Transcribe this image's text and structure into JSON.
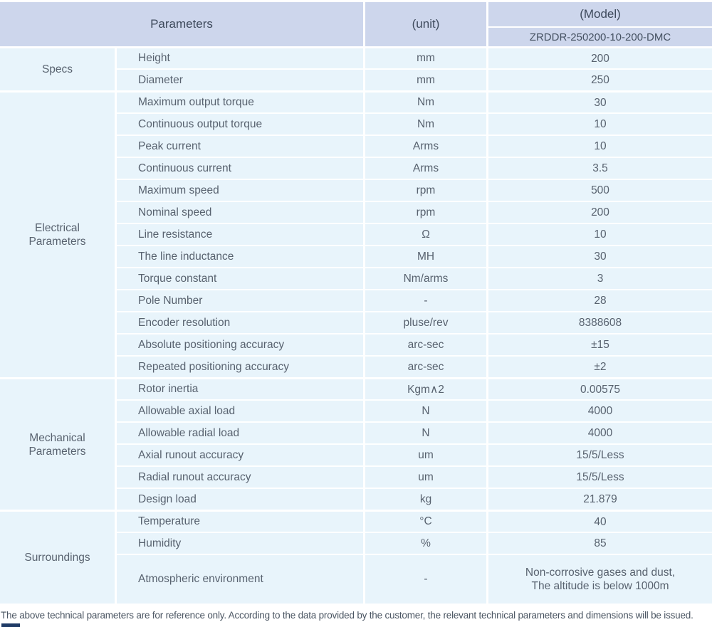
{
  "header": {
    "parameters_label": "Parameters",
    "unit_label": "(unit)",
    "model_label": "(Model)",
    "model_value": "ZRDDR-250200-10-200-DMC"
  },
  "sections": [
    {
      "id": "specs",
      "name": "Specs",
      "rows": [
        {
          "param": "Height",
          "unit": "mm",
          "value": "200"
        },
        {
          "param": "Diameter",
          "unit": "mm",
          "value": "250"
        }
      ]
    },
    {
      "id": "electrical-parameters",
      "name": "Electrical Parameters",
      "rows": [
        {
          "param": "Maximum output torque",
          "unit": "Nm",
          "value": "30"
        },
        {
          "param": "Continuous output torque",
          "unit": "Nm",
          "value": "10"
        },
        {
          "param": "Peak current",
          "unit": "Arms",
          "value": "10"
        },
        {
          "param": "Continuous current",
          "unit": "Arms",
          "value": "3.5"
        },
        {
          "param": "Maximum speed",
          "unit": "rpm",
          "value": "500"
        },
        {
          "param": "Nominal speed",
          "unit": "rpm",
          "value": "200"
        },
        {
          "param": "Line resistance",
          "unit": "Ω",
          "value": "10"
        },
        {
          "param": "The line inductance",
          "unit": "MH",
          "value": "30"
        },
        {
          "param": "Torque constant",
          "unit": "Nm/arms",
          "value": "3"
        },
        {
          "param": "Pole Number",
          "unit": "-",
          "value": "28"
        },
        {
          "param": "Encoder resolution",
          "unit": "pluse/rev",
          "value": "8388608"
        },
        {
          "param": "Absolute positioning accuracy",
          "unit": "arc-sec",
          "value": "±15"
        },
        {
          "param": "Repeated positioning accuracy",
          "unit": "arc-sec",
          "value": "±2"
        }
      ]
    },
    {
      "id": "mechanical-parameters",
      "name": "Mechanical Parameters",
      "rows": [
        {
          "param": "Rotor inertia",
          "unit": "Kgm∧2",
          "value": "0.00575"
        },
        {
          "param": "Allowable axial load",
          "unit": "N",
          "value": "4000"
        },
        {
          "param": "Allowable radial load",
          "unit": "N",
          "value": "4000"
        },
        {
          "param": "Axial runout accuracy",
          "unit": "um",
          "value": "15/5/Less"
        },
        {
          "param": "Radial runout accuracy",
          "unit": "um",
          "value": "15/5/Less"
        },
        {
          "param": "Design load",
          "unit": "kg",
          "value": "21.879"
        }
      ]
    },
    {
      "id": "surroundings",
      "name": "Surroundings",
      "rows": [
        {
          "param": "Temperature",
          "unit": "°C",
          "value": "40"
        },
        {
          "param": "Humidity",
          "unit": "%",
          "value": "85"
        },
        {
          "param": "Atmospheric environment",
          "unit": "-",
          "value": "Non-corrosive gases and dust,\nThe altitude is below 1000m"
        }
      ]
    }
  ],
  "footer": {
    "note": "The above technical parameters are for reference only. According to the data provided by the customer, the relevant technical parameters and dimensions will be issued."
  },
  "colors": {
    "header_bg": "#cdd6ec",
    "cell_bg": "#e8f4fb",
    "grid_line": "#ffffff",
    "text": "#58626f",
    "corner_mark": "#1f3b66"
  }
}
